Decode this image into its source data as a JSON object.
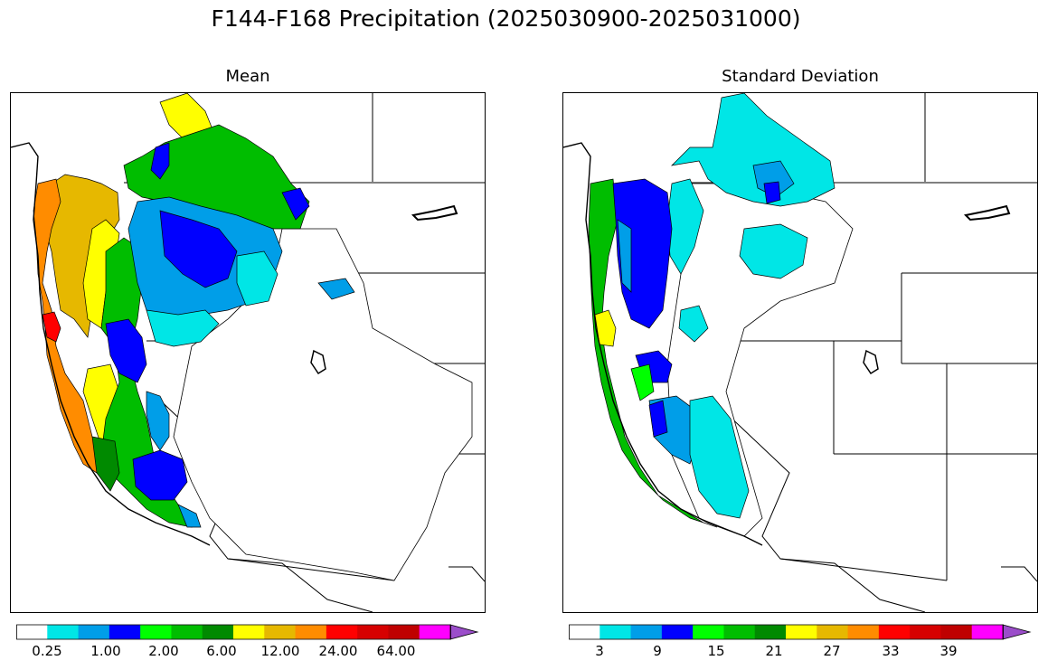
{
  "title": "F144-F168 Precipitation (2025030900-2025031000)",
  "panels": {
    "mean": {
      "subtitle": "Mean",
      "colorbar": {
        "colors": [
          "#ffffff",
          "#00e6e6",
          "#009ee8",
          "#0000ff",
          "#00ff00",
          "#00bd00",
          "#008a00",
          "#ffff00",
          "#e6b800",
          "#ff8c00",
          "#ff0000",
          "#d60000",
          "#bf0000",
          "#ff00ff",
          "#9b4dca"
        ],
        "tick_labels": [
          "0.25",
          "1.00",
          "2.00",
          "6.00",
          "12.00",
          "24.00",
          "64.00"
        ]
      }
    },
    "std": {
      "subtitle": "Standard Deviation",
      "colorbar": {
        "colors": [
          "#ffffff",
          "#00e6e6",
          "#009ee8",
          "#0000ff",
          "#00ff00",
          "#00bd00",
          "#008a00",
          "#ffff00",
          "#e6b800",
          "#ff8c00",
          "#ff0000",
          "#d60000",
          "#bf0000",
          "#ff00ff",
          "#9b4dca"
        ],
        "tick_labels": [
          "3",
          "9",
          "15",
          "21",
          "27",
          "33",
          "39"
        ]
      }
    }
  }
}
